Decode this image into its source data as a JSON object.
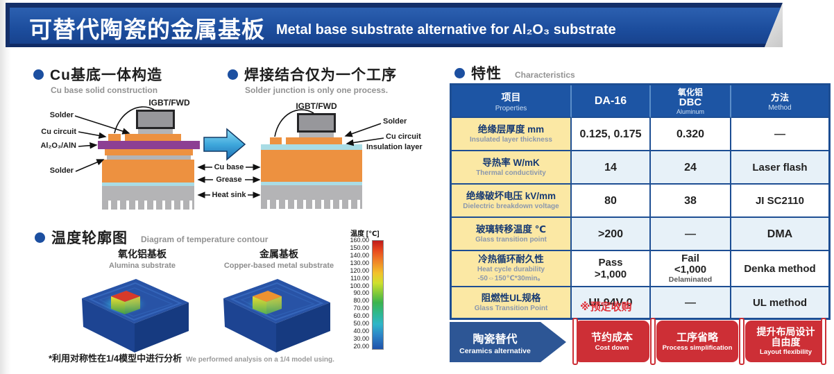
{
  "header": {
    "title_zh": "可替代陶瓷的金属基板",
    "title_en": "Metal base substrate alternative for Al₂O₃ substrate"
  },
  "sections": {
    "cu_base": {
      "zh": "Cu基底一体构造",
      "en": "Cu base solid construction"
    },
    "solder_process": {
      "zh": "焊接结合仅为一个工序",
      "en": "Solder junction is only one process."
    },
    "temperature": {
      "zh": "温度轮廓图",
      "en": "Diagram of temperature contour"
    },
    "characteristics": {
      "zh": "特性",
      "en": "Characteristics"
    }
  },
  "diagram_labels": {
    "igbt": "IGBT/FWD",
    "solder": "Solder",
    "cu_circuit": "Cu circuit",
    "ceramic": "Al₂O₃/AlN",
    "insulation": "Insulation layer",
    "cu_base": "Cu base",
    "grease": "Grease",
    "heat_sink": "Heat sink"
  },
  "contour": {
    "alumina": {
      "zh": "氧化铝基板",
      "en": "Alumina substrate"
    },
    "metal": {
      "zh": "金属基板",
      "en": "Copper-based metal substrate"
    },
    "scale_title": "温度 [℃]",
    "scale_ticks": [
      "160.00",
      "150.00",
      "140.00",
      "130.00",
      "120.00",
      "110.00",
      "100.00",
      "90.00",
      "80.00",
      "70.00",
      "60.00",
      "50.00",
      "40.00",
      "30.00",
      "20.00"
    ],
    "footnote_zh": "*利用对称性在1/4模型中进行分析",
    "footnote_en": "We performed analysis on a 1/4 model using."
  },
  "table": {
    "headers": {
      "properties": {
        "zh": "项目",
        "en": "Properties"
      },
      "da16": "DA-16",
      "dbc": {
        "zh": "氧化铝",
        "name": "DBC",
        "en": "Aluminum"
      },
      "method": {
        "zh": "方法",
        "en": "Method"
      }
    },
    "rows": [
      {
        "zh": "绝缘层厚度  mm",
        "en": "Insulated layer thickness",
        "da16": "0.125, 0.175",
        "dbc": "0.320",
        "method": "—"
      },
      {
        "zh": "导热率  W/mK",
        "en": "Thermal conductivity",
        "da16": "14",
        "dbc": "24",
        "method": "Laser flash"
      },
      {
        "zh": "绝缘破坏电压  kV/mm",
        "en": "Dielectric breakdown voltage",
        "da16": "80",
        "dbc": "38",
        "method": "JI SC2110"
      },
      {
        "zh": "玻璃转移温度  ℃",
        "en": "Glass transition point",
        "da16": ">200",
        "dbc": "—",
        "method": "DMA"
      },
      {
        "zh": "冷热循环耐久性",
        "en": "Heat cycle durability",
        "sub": "-50⇔150℃*30min。",
        "da16_l1": "Pass",
        "da16_l2": ">1,000",
        "dbc_l1": "Fail",
        "dbc_l2": "<1,000",
        "dbc_l3": "Delaminated",
        "method": "Denka method"
      },
      {
        "zh": "阻燃性UL规格",
        "en": "Glass Transition Point",
        "da16": "UL94V-0",
        "note": "※预定收购",
        "dbc": "—",
        "method": "UL method"
      }
    ]
  },
  "cta": {
    "source": {
      "zh": "陶瓷替代",
      "en": "Ceramics alternative"
    },
    "benefits": [
      {
        "zh": "节约成本",
        "en": "Cost down"
      },
      {
        "zh": "工序省略",
        "en": "Process simplification"
      },
      {
        "zh": "提升布局设计",
        "zh2": "自由度",
        "en": "Layout flexibility"
      }
    ]
  },
  "colors": {
    "header_blue": "#1c4d9d",
    "table_header_blue": "#1d55a4",
    "border_navy": "#1d4e93",
    "label_cream": "#fbe8a4",
    "row_tint": "#e7f1f8",
    "accent_red": "#cd2f36",
    "note_red": "#e03038",
    "copper_orange": "#ed9140",
    "ceramic_purple": "#8d3f93",
    "grease_cyan": "#a9dce5",
    "metal_gray": "#b2b2b4",
    "bullet_blue": "#1c4fa0"
  }
}
